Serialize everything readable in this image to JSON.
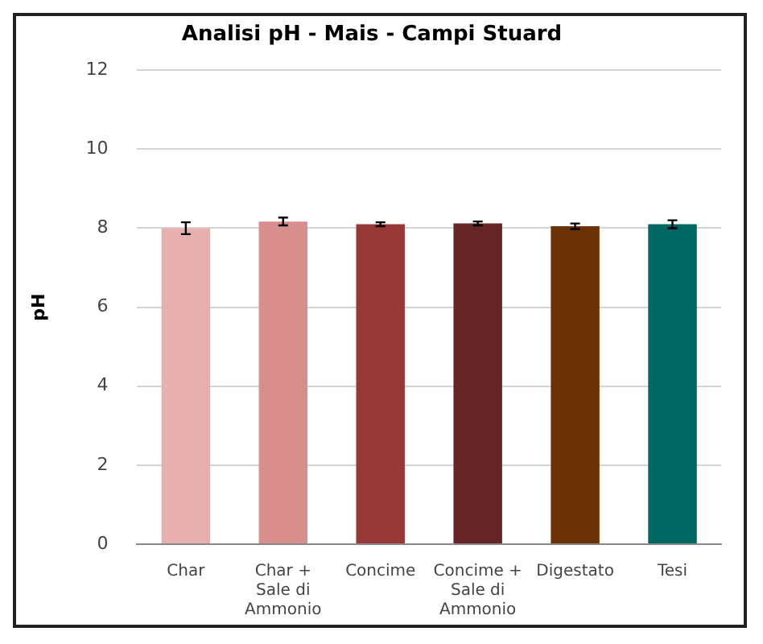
{
  "chart_data": {
    "type": "bar",
    "title": "Analisi pH - Mais - Campi Stuard",
    "ylabel": "pH",
    "categories": [
      "Char",
      "Char + Sale di Ammonio",
      "Concime",
      "Concime + Sale di Ammonio",
      "Digestato",
      "Tesi"
    ],
    "values": [
      8.0,
      8.17,
      8.1,
      8.12,
      8.05,
      8.1
    ],
    "colors": [
      "#e6b0b0",
      "#d98e8e",
      "#963836",
      "#652426",
      "#6b3205",
      "#006662"
    ],
    "errors": [
      0.15,
      0.1,
      0.05,
      0.05,
      0.07,
      0.1
    ],
    "ylim": [
      0,
      12
    ],
    "yticks": [
      0,
      2,
      4,
      6,
      8,
      10,
      12
    ],
    "grid": "y",
    "legend": false
  }
}
